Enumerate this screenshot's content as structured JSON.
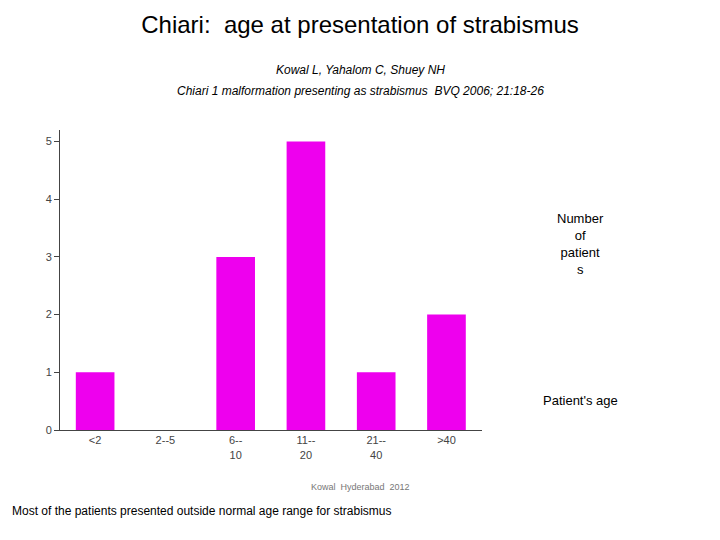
{
  "chart_data": {
    "type": "bar",
    "title": "Chiari:  age at presentation of strabismus",
    "subtitle": [
      "Kowal L, Yahalom C, Shuey NH",
      "Chiari 1 malformation presenting as strabismus  BVQ 2006; 21:18-26"
    ],
    "categories": [
      "<2",
      "2--5",
      "6--\n10",
      "11--\n20",
      "21--\n40",
      ">40"
    ],
    "values": [
      1,
      0,
      3,
      5,
      1,
      2
    ],
    "color": "#EE00EE",
    "xlabel": "Patient's age",
    "ylabel": "Number\nof\npatient\ns",
    "ylim": [
      0,
      5.2
    ],
    "yticks": [
      0,
      1,
      2,
      3,
      4,
      5
    ],
    "grid": false,
    "annotations": [
      "Most of the patients presented outside normal age range for strabismus",
      "Kowal  Hyderabad  2012"
    ]
  }
}
